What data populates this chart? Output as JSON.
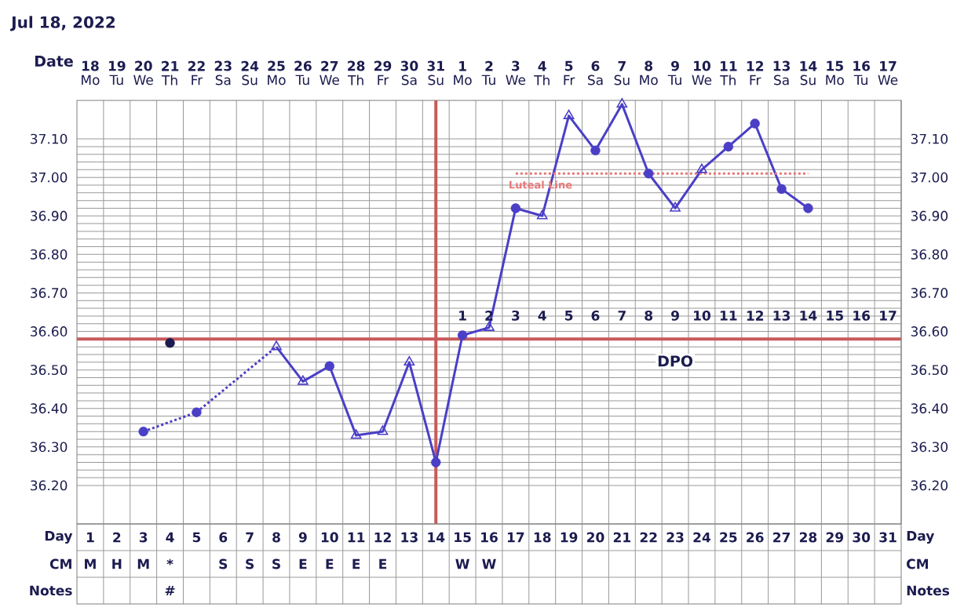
{
  "chart_data": [
    {
      "type": "line",
      "title": "Jul 18, 2022",
      "xlabel": "Date",
      "categories": [
        "18",
        "19",
        "20",
        "21",
        "22",
        "23",
        "24",
        "25",
        "26",
        "27",
        "28",
        "29",
        "30",
        "31",
        "1",
        "2",
        "3",
        "4",
        "5",
        "6",
        "7",
        "8",
        "9",
        "10",
        "11",
        "12",
        "13",
        "14",
        "15",
        "16",
        "17"
      ],
      "series": [
        {
          "color": "#4a3fc6",
          "line_style": "solid",
          "marker": "none",
          "values": [
            null,
            null,
            null,
            null,
            null,
            null,
            null,
            36.56,
            36.47,
            36.51,
            36.33,
            36.34,
            36.52,
            36.26,
            36.59,
            36.61,
            36.92,
            36.9,
            37.16,
            37.07,
            37.19,
            37.01,
            36.92,
            37.02,
            37.08,
            37.14,
            36.97,
            36.92,
            null,
            null,
            null
          ]
        },
        {
          "color": "#4a3fc6",
          "line_style": "dashed",
          "marker": "none",
          "values": [
            null,
            null,
            36.34,
            null,
            36.39,
            null,
            null,
            36.56,
            null,
            null,
            null,
            null,
            null,
            null,
            null,
            null,
            null,
            null,
            null,
            null,
            null,
            null,
            null,
            null,
            null,
            null,
            null,
            null,
            null,
            null,
            null
          ]
        },
        {
          "type": "scatter",
          "color": "#4a3fc6",
          "marker": "circle",
          "values": [
            null,
            null,
            36.34,
            null,
            36.39,
            null,
            null,
            null,
            null,
            36.51,
            null,
            null,
            null,
            36.26,
            36.59,
            null,
            36.92,
            null,
            null,
            37.07,
            null,
            37.01,
            null,
            null,
            37.08,
            37.14,
            36.97,
            36.92,
            null,
            null,
            null
          ]
        },
        {
          "type": "scatter",
          "color": "#4a3fc6",
          "marker": "triangle",
          "values": [
            null,
            null,
            null,
            null,
            null,
            null,
            null,
            36.56,
            36.47,
            null,
            36.33,
            36.34,
            36.52,
            null,
            null,
            36.61,
            null,
            36.9,
            37.16,
            null,
            37.19,
            null,
            36.92,
            37.02,
            null,
            null,
            null,
            null,
            null,
            null,
            null
          ]
        },
        {
          "type": "scatter",
          "color": "#1c1c50",
          "marker": "circle",
          "values": [
            null,
            null,
            null,
            36.57,
            null,
            null,
            null,
            null,
            null,
            null,
            null,
            null,
            null,
            null,
            null,
            null,
            null,
            null,
            null,
            null,
            null,
            null,
            null,
            null,
            null,
            null,
            null,
            null,
            null,
            null,
            null
          ]
        },
        {
          "name": "Luteal Line",
          "color": "#e87878",
          "line_style": "dashed",
          "marker": "none",
          "values": [
            null,
            null,
            null,
            null,
            null,
            null,
            null,
            null,
            null,
            null,
            null,
            null,
            null,
            null,
            null,
            null,
            37.01,
            37.01,
            37.01,
            37.01,
            37.01,
            37.01,
            37.01,
            37.01,
            37.01,
            37.01,
            37.01,
            37.01,
            null,
            null,
            null
          ]
        }
      ],
      "ylim": [
        36.1,
        37.2
      ],
      "yticks": [
        {
          "value": 36.2,
          "label": "36.20"
        },
        {
          "value": 36.3,
          "label": "36.30"
        },
        {
          "value": 36.4,
          "label": "36.40"
        },
        {
          "value": 36.5,
          "label": "36.50"
        },
        {
          "value": 36.6,
          "label": "36.60"
        },
        {
          "value": 36.7,
          "label": "36.70"
        },
        {
          "value": 36.8,
          "label": "36.80"
        },
        {
          "value": 36.9,
          "label": "36.90"
        },
        {
          "value": 37.0,
          "label": "37.00"
        },
        {
          "value": 37.1,
          "label": "37.10"
        }
      ],
      "y2lim": [
        36.1,
        37.2
      ],
      "y2ticks": [
        {
          "value": 36.2,
          "label": "36.20"
        },
        {
          "value": 36.3,
          "label": "36.30"
        },
        {
          "value": 36.4,
          "label": "36.40"
        },
        {
          "value": 36.5,
          "label": "36.50"
        },
        {
          "value": 36.6,
          "label": "36.60"
        },
        {
          "value": 36.7,
          "label": "36.70"
        },
        {
          "value": 36.8,
          "label": "36.80"
        },
        {
          "value": 36.9,
          "label": "36.90"
        },
        {
          "value": 37.0,
          "label": "37.00"
        },
        {
          "value": 37.1,
          "label": "37.10"
        }
      ],
      "grid": true,
      "ref_lines": [
        {
          "axis": "y",
          "value": 36.58,
          "color": "#c85a5a"
        },
        {
          "axis": "x",
          "value": "31",
          "color": "#c85a5a"
        }
      ],
      "annotations": [
        "Mo",
        "Tu",
        "We",
        "Th",
        "Fr",
        "Sa",
        "Su",
        "Mo",
        "Tu",
        "We",
        "Th",
        "Fr",
        "Sa",
        "Su",
        "Mo",
        "Tu",
        "We",
        "Th",
        "Fr",
        "Sa",
        "Su",
        "Mo",
        "Tu",
        "We",
        "Th",
        "Fr",
        "Sa",
        "Su",
        "Mo",
        "Tu",
        "We",
        "1",
        "2",
        "3",
        "4",
        "5",
        "6",
        "7",
        "8",
        "9",
        "10",
        "11",
        "12",
        "13",
        "14",
        "15",
        "16",
        "17",
        "DPO"
      ]
    },
    {
      "type": "heatmap",
      "categories": [
        null,
        null,
        null,
        null,
        null,
        null,
        null,
        null,
        null,
        null,
        null,
        null,
        null,
        null,
        null,
        null,
        null,
        null,
        null,
        null,
        null,
        null,
        null,
        null,
        null,
        null,
        null,
        null,
        null,
        null,
        null
      ],
      "y_categories": [
        "Day",
        "CM",
        "Notes"
      ],
      "y2_categories": [
        "Day",
        "CM",
        "Notes"
      ],
      "cells": [
        [
          null,
          null,
          null,
          null,
          null,
          null,
          null,
          null,
          null,
          null,
          null,
          null,
          null,
          null,
          null,
          null,
          null,
          null,
          null,
          null,
          null,
          null,
          null,
          null,
          null,
          null,
          null,
          null,
          null,
          null,
          null
        ],
        [
          null,
          null,
          null,
          null,
          null,
          null,
          null,
          null,
          null,
          null,
          null,
          null,
          null,
          null,
          null,
          null,
          null,
          null,
          null,
          null,
          null,
          null,
          null,
          null,
          null,
          null,
          null,
          null,
          null,
          null,
          null
        ],
        [
          null,
          null,
          null,
          null,
          null,
          null,
          null,
          null,
          null,
          null,
          null,
          null,
          null,
          null,
          null,
          null,
          null,
          null,
          null,
          null,
          null,
          null,
          null,
          null,
          null,
          null,
          null,
          null,
          null,
          null,
          null
        ]
      ],
      "cell_labels": [
        [
          "1",
          "2",
          "3",
          "4",
          "5",
          "6",
          "7",
          "8",
          "9",
          "10",
          "11",
          "12",
          "13",
          "14",
          "15",
          "16",
          "17",
          "18",
          "19",
          "20",
          "21",
          "22",
          "23",
          "24",
          "25",
          "26",
          "27",
          "28",
          "29",
          "30",
          "31"
        ],
        [
          "M",
          "H",
          "M",
          "*",
          null,
          "S",
          "S",
          "S",
          "E",
          "E",
          "E",
          "E",
          null,
          null,
          "W",
          "W",
          null,
          null,
          null,
          null,
          null,
          null,
          null,
          null,
          null,
          null,
          null,
          null,
          null,
          null,
          null
        ],
        [
          null,
          null,
          null,
          "#",
          null,
          null,
          null,
          null,
          null,
          null,
          null,
          null,
          null,
          null,
          null,
          null,
          null,
          null,
          null,
          null,
          null,
          null,
          null,
          null,
          null,
          null,
          null,
          null,
          null,
          null,
          null
        ]
      ]
    }
  ]
}
